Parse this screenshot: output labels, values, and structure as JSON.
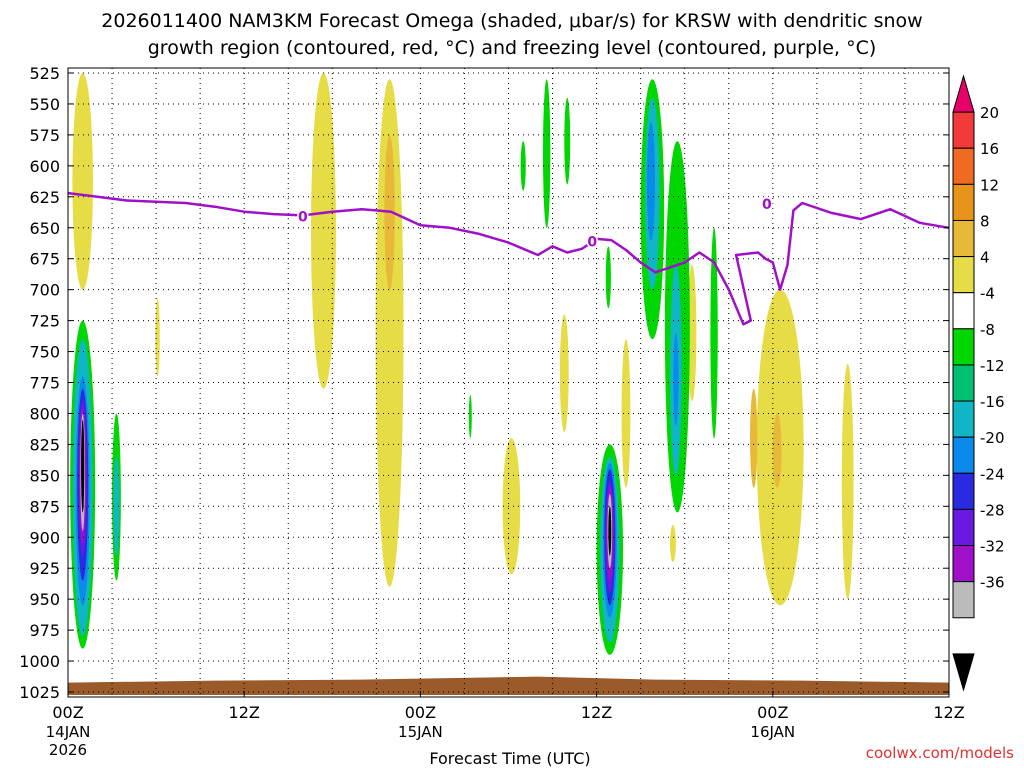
{
  "chart_data": {
    "type": "heatmap",
    "title_line1": "2026011400 NAM3KM Forecast Omega (shaded, μbar/s) for KRSW with dendritic snow",
    "title_line2": "growth region (contoured, red, °C) and freezing level (contoured, purple, °C)",
    "xlabel": "Forecast Time (UTC)",
    "ylabel": "",
    "credit": "coolwx.com/models",
    "x_unit": "forecast hours",
    "xlim": [
      0,
      60
    ],
    "y_unit": "hPa",
    "ylim": [
      1025,
      525
    ],
    "yticks": [
      525,
      550,
      575,
      600,
      625,
      650,
      675,
      700,
      725,
      750,
      775,
      800,
      825,
      850,
      875,
      900,
      925,
      950,
      975,
      1000,
      1025
    ],
    "xticks": [
      {
        "hour": 0,
        "label": "00Z",
        "date": "14JAN",
        "year": "2026"
      },
      {
        "hour": 12,
        "label": "12Z",
        "date": "",
        "year": ""
      },
      {
        "hour": 24,
        "label": "00Z",
        "date": "15JAN",
        "year": ""
      },
      {
        "hour": 36,
        "label": "12Z",
        "date": "",
        "year": ""
      },
      {
        "hour": 48,
        "label": "00Z",
        "date": "16JAN",
        "year": ""
      },
      {
        "hour": 60,
        "label": "12Z",
        "date": "",
        "year": ""
      }
    ],
    "grid": true,
    "colorbar": {
      "labels": [
        "20",
        "16",
        "12",
        "8",
        "4",
        "-4",
        "-8",
        "-12",
        "-16",
        "-20",
        "-24",
        "-28",
        "-32",
        "-36"
      ],
      "colors": [
        "#e8006a",
        "#f23a3a",
        "#f06a22",
        "#e8941a",
        "#e8b838",
        "#e6dc46",
        "#ffffff",
        "#00d600",
        "#00c070",
        "#10b6c6",
        "#0a8aea",
        "#2a2ae0",
        "#6a1ae0",
        "#a010c8",
        "#bbbbbb",
        "#000000"
      ]
    },
    "freezing_level": {
      "name": "freezing level (0 °C)",
      "color": "#a010c8",
      "label": "0",
      "points": [
        [
          0,
          622
        ],
        [
          2,
          625
        ],
        [
          4,
          628
        ],
        [
          6,
          629
        ],
        [
          8,
          630
        ],
        [
          10,
          633
        ],
        [
          12,
          637
        ],
        [
          14,
          639
        ],
        [
          16,
          640
        ],
        [
          18,
          637
        ],
        [
          20,
          635
        ],
        [
          22,
          637
        ],
        [
          24,
          648
        ],
        [
          26,
          650
        ],
        [
          28,
          655
        ],
        [
          30,
          662
        ],
        [
          31,
          667
        ],
        [
          32,
          672
        ],
        [
          33,
          665
        ],
        [
          34,
          670
        ],
        [
          35,
          667
        ],
        [
          36,
          659
        ],
        [
          37,
          660
        ],
        [
          38,
          668
        ],
        [
          39,
          678
        ],
        [
          40,
          686
        ],
        [
          41,
          682
        ],
        [
          42,
          678
        ],
        [
          43,
          670
        ],
        [
          44,
          678
        ],
        [
          45,
          700
        ],
        [
          46,
          728
        ],
        [
          46.5,
          725
        ],
        [
          45.5,
          672
        ],
        [
          47,
          670
        ],
        [
          47.5,
          675
        ],
        [
          48,
          678
        ],
        [
          48.5,
          700
        ],
        [
          49,
          680
        ],
        [
          49.4,
          636
        ],
        [
          50,
          630
        ],
        [
          52,
          638
        ],
        [
          54,
          643
        ],
        [
          56,
          635
        ],
        [
          58,
          646
        ],
        [
          60,
          650
        ]
      ]
    },
    "ground": {
      "name": "terrain",
      "color": "#9a5a2a",
      "pressure_top": 1015
    },
    "omega_regions": [
      {
        "name": "downward omega +4",
        "value": 4,
        "color": "#e6dc46",
        "t": 1.0,
        "p1": 525,
        "p2": 700,
        "w": 1.4
      },
      {
        "name": "downward omega +4",
        "value": 4,
        "color": "#e6dc46",
        "t": 17.4,
        "p1": 525,
        "p2": 780,
        "w": 1.7
      },
      {
        "name": "downward omega +4",
        "value": 4,
        "color": "#e6dc46",
        "t": 21.9,
        "p1": 530,
        "p2": 940,
        "w": 1.9
      },
      {
        "name": "downward omega +8",
        "value": 8,
        "color": "#e8b838",
        "t": 21.9,
        "p1": 575,
        "p2": 700,
        "w": 0.7
      },
      {
        "name": "downward omega +4",
        "value": 4,
        "color": "#e6dc46",
        "t": 6.1,
        "p1": 707,
        "p2": 770,
        "w": 0.3
      },
      {
        "name": "downward omega +4",
        "value": 4,
        "color": "#e6dc46",
        "t": 30.2,
        "p1": 820,
        "p2": 930,
        "w": 1.2
      },
      {
        "name": "downward omega +4",
        "value": 4,
        "color": "#e6dc46",
        "t": 33.8,
        "p1": 720,
        "p2": 815,
        "w": 0.6
      },
      {
        "name": "downward omega +4",
        "value": 4,
        "color": "#e6dc46",
        "t": 38.0,
        "p1": 740,
        "p2": 860,
        "w": 0.6
      },
      {
        "name": "downward omega +4",
        "value": 4,
        "color": "#e6dc46",
        "t": 42.5,
        "p1": 680,
        "p2": 790,
        "w": 0.6
      },
      {
        "name": "downward omega +4",
        "value": 4,
        "color": "#e6dc46",
        "t": 41.2,
        "p1": 890,
        "p2": 920,
        "w": 0.4
      },
      {
        "name": "downward omega +4",
        "value": 4,
        "color": "#e6dc46",
        "t": 48.5,
        "p1": 700,
        "p2": 955,
        "w": 3.2
      },
      {
        "name": "downward omega +8",
        "value": 8,
        "color": "#e8b838",
        "t": 46.7,
        "p1": 780,
        "p2": 860,
        "w": 0.5
      },
      {
        "name": "downward omega +8",
        "value": 8,
        "color": "#e8b838",
        "t": 48.3,
        "p1": 800,
        "p2": 860,
        "w": 0.6
      },
      {
        "name": "downward omega +4",
        "value": 4,
        "color": "#e6dc46",
        "t": 53.1,
        "p1": 760,
        "p2": 950,
        "w": 0.8
      },
      {
        "name": "upward omega -4",
        "value": -4,
        "color": "#00d600",
        "t": 31.0,
        "p1": 580,
        "p2": 620,
        "w": 0.35
      },
      {
        "name": "upward omega -4",
        "value": -4,
        "color": "#00d600",
        "t": 32.6,
        "p1": 530,
        "p2": 650,
        "w": 0.5
      },
      {
        "name": "upward omega -4",
        "value": -4,
        "color": "#00d600",
        "t": 34.0,
        "p1": 545,
        "p2": 615,
        "w": 0.4
      },
      {
        "name": "upward omega -4",
        "value": -4,
        "color": "#00d600",
        "t": 27.4,
        "p1": 785,
        "p2": 820,
        "w": 0.2
      },
      {
        "name": "upward omega -4",
        "value": -4,
        "color": "#00d600",
        "t": 36.8,
        "p1": 665,
        "p2": 715,
        "w": 0.35
      },
      {
        "name": "upward omega -4",
        "value": -4,
        "color": "#00d600",
        "t": 39.8,
        "p1": 530,
        "p2": 740,
        "w": 1.6
      },
      {
        "name": "upward omega -4",
        "value": -4,
        "color": "#00d600",
        "t": 41.5,
        "p1": 580,
        "p2": 880,
        "w": 1.7
      },
      {
        "name": "upward omega -4",
        "value": -4,
        "color": "#00d600",
        "t": 44.0,
        "p1": 650,
        "p2": 820,
        "w": 0.5
      },
      {
        "name": "upward omega -4",
        "value": -4,
        "color": "#00d600",
        "t": 1.0,
        "p1": 725,
        "p2": 990,
        "w": 1.7
      },
      {
        "name": "upward omega -4",
        "value": -4,
        "color": "#00d600",
        "t": 3.3,
        "p1": 800,
        "p2": 935,
        "w": 0.6
      },
      {
        "name": "upward omega -4",
        "value": -4,
        "color": "#00d600",
        "t": 36.9,
        "p1": 825,
        "p2": 995,
        "w": 1.8
      },
      {
        "name": "upward omega -12",
        "value": -12,
        "color": "#10b6c6",
        "t": 1.0,
        "p1": 740,
        "p2": 980,
        "w": 1.35
      },
      {
        "name": "upward omega -12",
        "value": -12,
        "color": "#10b6c6",
        "t": 3.3,
        "p1": 835,
        "p2": 915,
        "w": 0.4
      },
      {
        "name": "upward omega -12",
        "value": -12,
        "color": "#10b6c6",
        "t": 39.8,
        "p1": 545,
        "p2": 700,
        "w": 1.0
      },
      {
        "name": "upward omega -12",
        "value": -12,
        "color": "#10b6c6",
        "t": 41.4,
        "p1": 680,
        "p2": 850,
        "w": 0.8
      },
      {
        "name": "upward omega -12",
        "value": -12,
        "color": "#10b6c6",
        "t": 36.9,
        "p1": 835,
        "p2": 985,
        "w": 1.3
      },
      {
        "name": "upward omega -16",
        "value": -16,
        "color": "#0a8aea",
        "t": 1.0,
        "p1": 770,
        "p2": 955,
        "w": 0.95
      },
      {
        "name": "upward omega -16",
        "value": -16,
        "color": "#0a8aea",
        "t": 39.7,
        "p1": 565,
        "p2": 660,
        "w": 0.55
      },
      {
        "name": "upward omega -16",
        "value": -16,
        "color": "#0a8aea",
        "t": 41.4,
        "p1": 735,
        "p2": 810,
        "w": 0.35
      },
      {
        "name": "upward omega -16",
        "value": -16,
        "color": "#0a8aea",
        "t": 36.9,
        "p1": 840,
        "p2": 965,
        "w": 0.95
      },
      {
        "name": "upward omega -20",
        "value": -20,
        "color": "#2a2ae0",
        "t": 1.0,
        "p1": 780,
        "p2": 935,
        "w": 0.75
      },
      {
        "name": "upward omega -20",
        "value": -20,
        "color": "#2a2ae0",
        "t": 36.9,
        "p1": 845,
        "p2": 955,
        "w": 0.75
      },
      {
        "name": "upward omega -24",
        "value": -24,
        "color": "#6a1ae0",
        "t": 1.0,
        "p1": 790,
        "p2": 915,
        "w": 0.55
      },
      {
        "name": "upward omega -24",
        "value": -24,
        "color": "#6a1ae0",
        "t": 36.9,
        "p1": 855,
        "p2": 945,
        "w": 0.55
      },
      {
        "name": "upward omega -28",
        "value": -28,
        "color": "#a010c8",
        "t": 1.0,
        "p1": 795,
        "p2": 905,
        "w": 0.45
      },
      {
        "name": "upward omega -28",
        "value": -28,
        "color": "#a010c8",
        "t": 36.9,
        "p1": 860,
        "p2": 935,
        "w": 0.45
      },
      {
        "name": "upward omega -32",
        "value": -32,
        "color": "#bbbbbb",
        "t": 1.0,
        "p1": 800,
        "p2": 895,
        "w": 0.32
      },
      {
        "name": "upward omega -32",
        "value": -32,
        "color": "#bbbbbb",
        "t": 36.9,
        "p1": 865,
        "p2": 925,
        "w": 0.32
      },
      {
        "name": "upward omega -36",
        "value": -36,
        "color": "#000000",
        "t": 1.0,
        "p1": 805,
        "p2": 880,
        "w": 0.22
      },
      {
        "name": "upward omega -36",
        "value": -36,
        "color": "#000000",
        "t": 36.9,
        "p1": 875,
        "p2": 915,
        "w": 0.2
      }
    ]
  }
}
